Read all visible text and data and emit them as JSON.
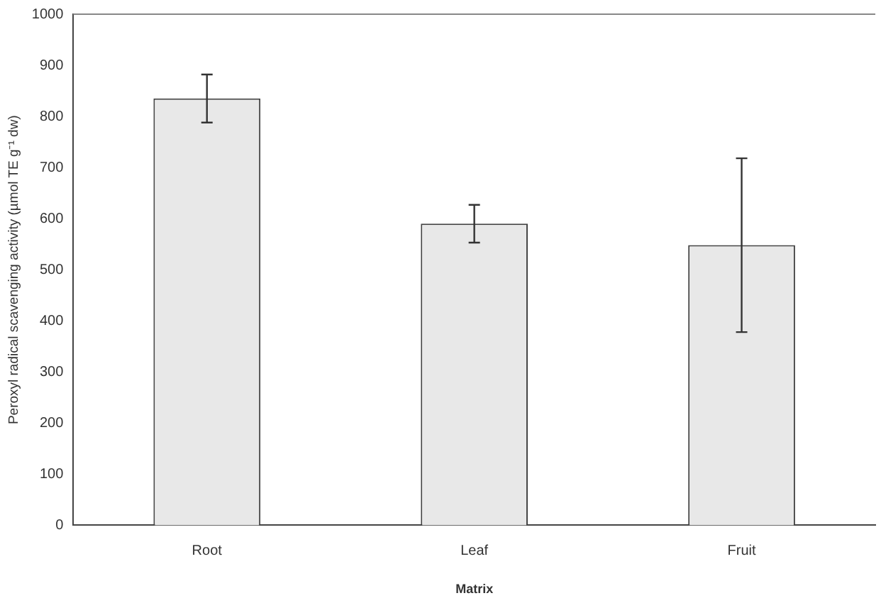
{
  "chart_data": {
    "type": "bar",
    "xlabel": "Matrix",
    "ylabel": "Peroxyl radical scavenging activity (µmol TE g⁻¹ dw)",
    "categories": [
      "Root",
      "Leaf",
      "Fruit"
    ],
    "values": [
      835,
      590,
      548
    ],
    "errors": [
      47,
      37,
      170
    ],
    "color": "#e8e8e8",
    "ylim": [
      0,
      1000
    ],
    "yticks": [
      0,
      100,
      200,
      300,
      400,
      500,
      600,
      700,
      800,
      900,
      1000
    ],
    "grid": false,
    "legend": false
  }
}
